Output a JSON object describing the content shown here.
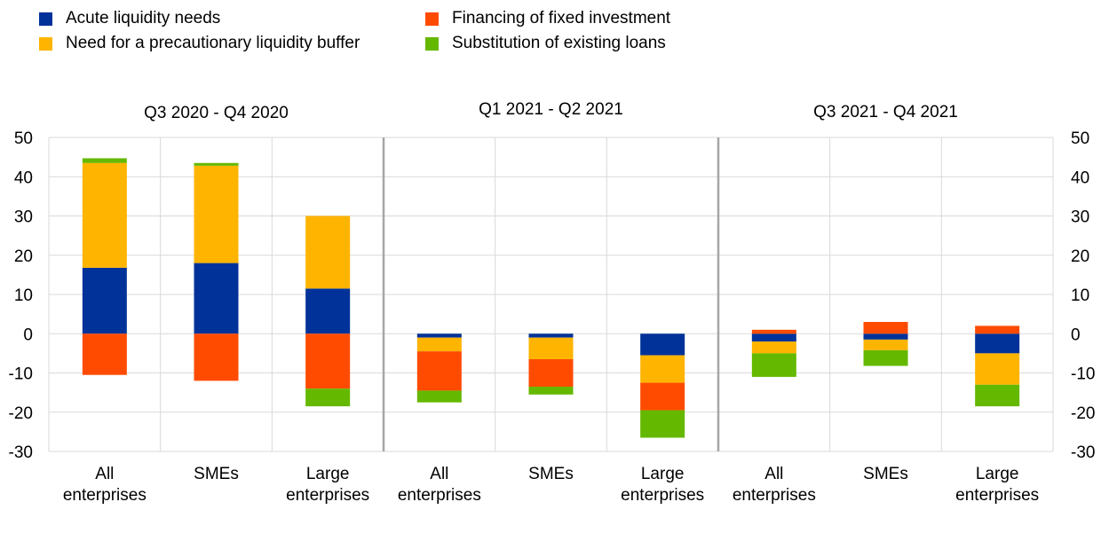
{
  "chart_data": {
    "type": "bar",
    "stacked": true,
    "period_labels": [
      "Q3 2020 - Q4 2020",
      "Q1 2021 - Q2 2021",
      "Q3 2021 - Q4 2021"
    ],
    "category_labels": [
      [
        "All",
        "enterprises"
      ],
      [
        "SMEs"
      ],
      [
        "Large",
        "enterprises"
      ]
    ],
    "ylim": [
      -30,
      50
    ],
    "yticks": [
      -30,
      -20,
      -10,
      0,
      10,
      20,
      30,
      40,
      50
    ],
    "grid": true,
    "legend_position": "top",
    "series": [
      {
        "name": "Acute liquidity needs",
        "color": "#003299",
        "values": [
          16.8,
          18.0,
          11.5,
          -1.0,
          -1.0,
          -5.5,
          -2.0,
          -1.5,
          -5.0
        ]
      },
      {
        "name": "Need for a precautionary liquidity buffer",
        "color": "#FFB400",
        "values": [
          26.7,
          24.8,
          18.5,
          -3.5,
          -5.5,
          -7.0,
          -3.0,
          -2.7,
          -8.0
        ]
      },
      {
        "name": "Financing of fixed investment",
        "color": "#FF4B00",
        "values": [
          -10.5,
          -12.0,
          -14.0,
          -10.0,
          -7.0,
          -7.0,
          1.0,
          3.0,
          2.0
        ]
      },
      {
        "name": "Substitution of existing loans",
        "color": "#65B800",
        "values": [
          1.2,
          0.7,
          -4.5,
          -3.0,
          -2.0,
          -7.0,
          -6.0,
          -4.0,
          -5.5
        ]
      }
    ]
  }
}
